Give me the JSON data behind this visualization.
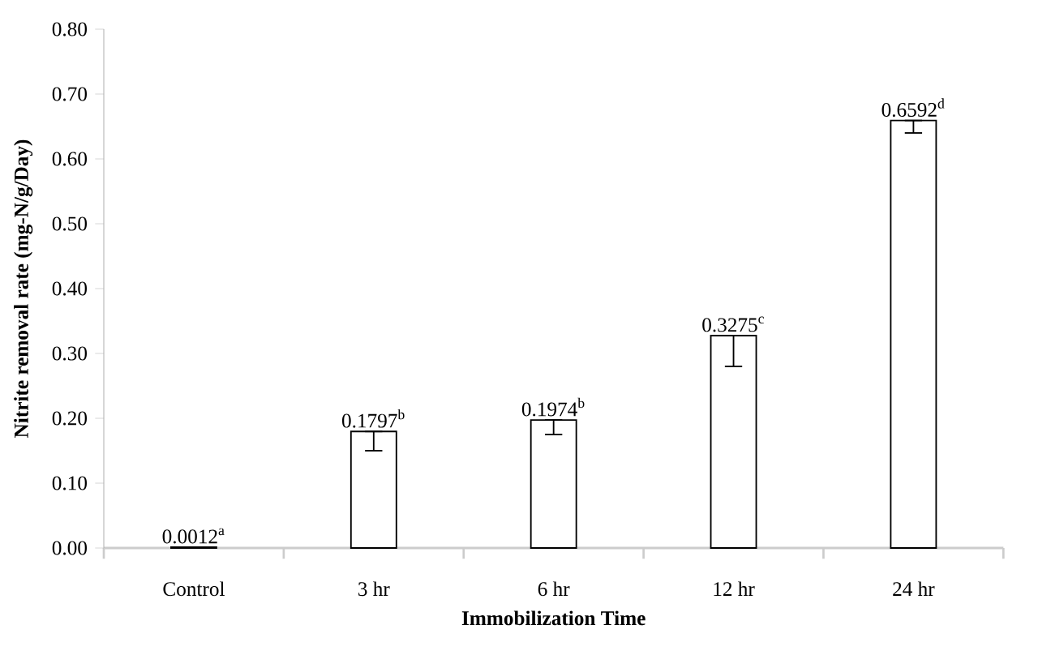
{
  "chart_data": {
    "type": "bar",
    "xlabel": "Immobilization Time",
    "ylabel": "Nitrite removal rate (mg-N/g/Day)",
    "categories": [
      "Control",
      "3 hr",
      "6 hr",
      "12 hr",
      "24 hr"
    ],
    "values": [
      0.0012,
      0.1797,
      0.1974,
      0.3275,
      0.6592
    ],
    "errors": [
      null,
      [
        0.15,
        0.1797
      ],
      [
        0.175,
        0.1974
      ],
      [
        0.28,
        0.3275
      ],
      [
        0.64,
        0.6592
      ]
    ],
    "value_labels": [
      "0.0012$^{a}$",
      "0.1797$^{b}$",
      "0.1974$^{b}$",
      "0.3275$^{c}$",
      "0.6592$^{d}$"
    ],
    "color": "#ffffff",
    "ylim": [
      0,
      0.8
    ],
    "yticks": [
      {
        "value": 0,
        "label": "0.00"
      },
      {
        "value": 0.1,
        "label": "0.10"
      },
      {
        "value": 0.2,
        "label": "0.20"
      },
      {
        "value": 0.3,
        "label": "0.30"
      },
      {
        "value": 0.4,
        "label": "0.40"
      },
      {
        "value": 0.5,
        "label": "0.50"
      },
      {
        "value": 0.6,
        "label": "0.60"
      },
      {
        "value": 0.7,
        "label": "0.70"
      },
      {
        "value": 0.8,
        "label": "0.80"
      }
    ],
    "grid": false
  }
}
